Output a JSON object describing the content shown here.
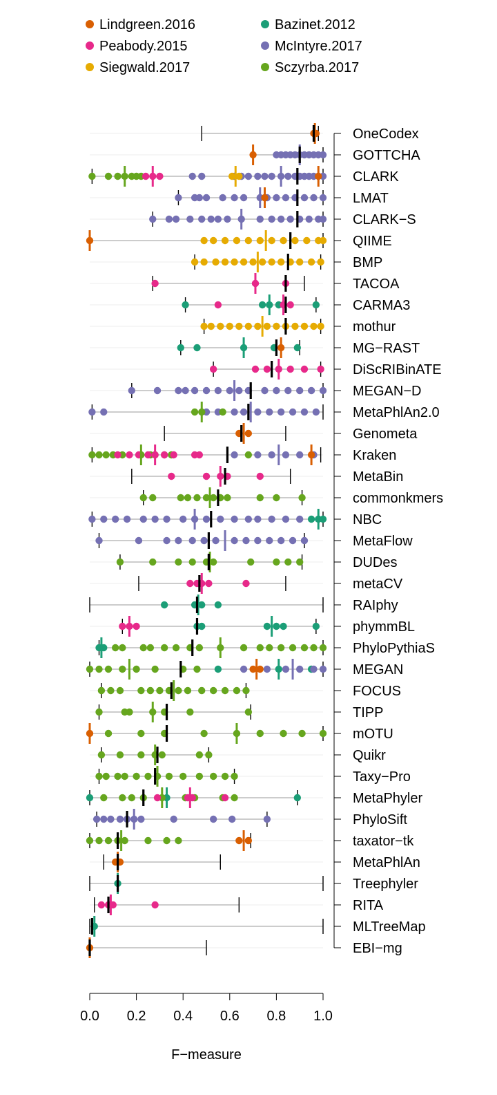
{
  "chart_data": {
    "type": "scatter",
    "xlabel": "F−measure",
    "xlim": [
      0,
      1
    ],
    "xticks": [
      "0.0",
      "0.2",
      "0.4",
      "0.6",
      "0.8",
      "1.0"
    ],
    "grid": true,
    "legend_position": "top",
    "series": [
      {
        "name": "Lindgreen.2016",
        "color": "#D95F02"
      },
      {
        "name": "Bazinet.2012",
        "color": "#1B9E77"
      },
      {
        "name": "Peabody.2015",
        "color": "#E7298A"
      },
      {
        "name": "McIntyre.2017",
        "color": "#7570B3"
      },
      {
        "name": "Siegwald.2017",
        "color": "#E6AB02"
      },
      {
        "name": "Sczyrba.2017",
        "color": "#66A61E"
      }
    ],
    "methods": [
      {
        "name": "OneCodex",
        "median": 0.96,
        "range": [
          0.48,
          0.98
        ],
        "points": {
          "Lindgreen.2016": [
            0.96,
            0.97
          ]
        }
      },
      {
        "name": "GOTTCHA",
        "median": 0.9,
        "range": [
          0.7,
          1.0
        ],
        "points": {
          "Lindgreen.2016": [
            0.7
          ],
          "McIntyre.2017": [
            0.8,
            0.82,
            0.84,
            0.86,
            0.88,
            0.9,
            0.92,
            0.94,
            0.96,
            0.98,
            1.0
          ]
        }
      },
      {
        "name": "CLARK",
        "median": 0.89,
        "range": [
          0.01,
          1.0
        ],
        "points": {
          "Sczyrba.2017": [
            0.01,
            0.08,
            0.12,
            0.15,
            0.18,
            0.2,
            0.22
          ],
          "Peabody.2015": [
            0.24,
            0.27,
            0.3
          ],
          "McIntyre.2017": [
            0.44,
            0.48,
            0.62,
            0.65,
            0.68,
            0.72,
            0.75,
            0.78,
            0.82,
            0.85,
            0.88,
            0.9,
            0.92,
            0.94,
            0.96,
            0.98,
            1.0
          ],
          "Siegwald.2017": [
            0.61,
            0.64
          ],
          "Lindgreen.2016": [
            0.98
          ]
        }
      },
      {
        "name": "LMAT",
        "median": 0.89,
        "range": [
          0.38,
          1.0
        ],
        "points": {
          "McIntyre.2017": [
            0.38,
            0.45,
            0.47,
            0.5,
            0.57,
            0.62,
            0.66,
            0.73,
            0.76,
            0.8,
            0.84,
            0.88,
            0.92,
            0.96,
            1.0
          ],
          "Lindgreen.2016": [
            0.75
          ]
        }
      },
      {
        "name": "CLARK−S",
        "median": 0.89,
        "range": [
          0.27,
          1.0
        ],
        "points": {
          "McIntyre.2017": [
            0.27,
            0.34,
            0.37,
            0.43,
            0.48,
            0.52,
            0.55,
            0.59,
            0.65,
            0.73,
            0.78,
            0.82,
            0.86,
            0.9,
            0.94,
            0.98,
            1.0
          ]
        }
      },
      {
        "name": "QIIME",
        "median": 0.86,
        "range": [
          0.0,
          1.0
        ],
        "points": {
          "Lindgreen.2016": [
            0.0
          ],
          "Siegwald.2017": [
            0.49,
            0.53,
            0.58,
            0.63,
            0.68,
            0.73,
            0.78,
            0.83,
            0.88,
            0.93,
            0.98,
            1.0
          ]
        }
      },
      {
        "name": "BMP",
        "median": 0.85,
        "range": [
          0.45,
          0.99
        ],
        "points": {
          "Siegwald.2017": [
            0.45,
            0.49,
            0.54,
            0.58,
            0.62,
            0.66,
            0.7,
            0.74,
            0.78,
            0.82,
            0.86,
            0.9,
            0.95,
            0.99
          ]
        }
      },
      {
        "name": "TACOA",
        "median": 0.84,
        "range": [
          0.27,
          0.92
        ],
        "points": {
          "Peabody.2015": [
            0.28,
            0.71,
            0.84
          ]
        }
      },
      {
        "name": "CARMA3",
        "median": 0.84,
        "range": [
          0.41,
          0.97
        ],
        "points": {
          "Bazinet.2012": [
            0.41,
            0.74,
            0.77,
            0.81,
            0.97
          ],
          "Peabody.2015": [
            0.55,
            0.83,
            0.86
          ]
        }
      },
      {
        "name": "mothur",
        "median": 0.84,
        "range": [
          0.49,
          0.99
        ],
        "points": {
          "Siegwald.2017": [
            0.49,
            0.52,
            0.56,
            0.6,
            0.64,
            0.68,
            0.72,
            0.76,
            0.8,
            0.84,
            0.88,
            0.92,
            0.96,
            0.99
          ]
        }
      },
      {
        "name": "MG−RAST",
        "median": 0.8,
        "range": [
          0.39,
          0.9
        ],
        "points": {
          "Bazinet.2012": [
            0.39,
            0.46,
            0.66,
            0.79,
            0.89
          ],
          "Lindgreen.2016": [
            0.82
          ]
        }
      },
      {
        "name": "DiScRIBinATE",
        "median": 0.78,
        "range": [
          0.53,
          0.99
        ],
        "points": {
          "Peabody.2015": [
            0.53,
            0.71,
            0.76,
            0.81,
            0.86,
            0.92,
            0.99
          ]
        }
      },
      {
        "name": "MEGAN−D",
        "median": 0.69,
        "range": [
          0.18,
          1.0
        ],
        "points": {
          "McIntyre.2017": [
            0.18,
            0.29,
            0.38,
            0.41,
            0.45,
            0.5,
            0.55,
            0.6,
            0.64,
            0.68,
            0.75,
            0.8,
            0.85,
            0.9,
            0.95,
            1.0
          ]
        }
      },
      {
        "name": "MetaPhlAn2.0",
        "median": 0.68,
        "range": [
          0.01,
          1.0
        ],
        "points": {
          "McIntyre.2017": [
            0.01,
            0.06,
            0.5,
            0.55,
            0.62,
            0.66,
            0.72,
            0.77,
            0.82,
            0.87,
            0.92,
            0.97
          ],
          "Sczyrba.2017": [
            0.45,
            0.48,
            0.57
          ]
        }
      },
      {
        "name": "Genometa",
        "median": 0.65,
        "range": [
          0.32,
          0.84
        ],
        "points": {
          "Lindgreen.2016": [
            0.64,
            0.68
          ]
        }
      },
      {
        "name": "Kraken",
        "median": 0.59,
        "range": [
          0.01,
          0.99
        ],
        "points": {
          "Sczyrba.2017": [
            0.01,
            0.04,
            0.07,
            0.1,
            0.14,
            0.22,
            0.26,
            0.28,
            0.32,
            0.35,
            0.68
          ],
          "Peabody.2015": [
            0.12,
            0.17,
            0.21,
            0.25,
            0.28,
            0.32,
            0.36,
            0.45,
            0.47
          ],
          "McIntyre.2017": [
            0.62,
            0.72,
            0.78,
            0.84,
            0.9,
            0.96
          ],
          "Lindgreen.2016": [
            0.95
          ]
        }
      },
      {
        "name": "MetaBin",
        "median": 0.58,
        "range": [
          0.18,
          0.86
        ],
        "points": {
          "Peabody.2015": [
            0.35,
            0.5,
            0.56,
            0.59,
            0.73
          ]
        }
      },
      {
        "name": "commonkmers",
        "median": 0.55,
        "range": [
          0.23,
          0.91
        ],
        "points": {
          "Sczyrba.2017": [
            0.23,
            0.27,
            0.39,
            0.42,
            0.46,
            0.5,
            0.53,
            0.56,
            0.59,
            0.73,
            0.8,
            0.91
          ]
        }
      },
      {
        "name": "NBC",
        "median": 0.52,
        "range": [
          0.01,
          1.0
        ],
        "points": {
          "McIntyre.2017": [
            0.01,
            0.06,
            0.11,
            0.16,
            0.23,
            0.28,
            0.33,
            0.4,
            0.45,
            0.5,
            0.56,
            0.62,
            0.68,
            0.72,
            0.78,
            0.84,
            0.9
          ],
          "Bazinet.2012": [
            0.95,
            0.98,
            1.0
          ]
        }
      },
      {
        "name": "MetaFlow",
        "median": 0.51,
        "range": [
          0.04,
          0.92
        ],
        "points": {
          "McIntyre.2017": [
            0.04,
            0.21,
            0.33,
            0.38,
            0.44,
            0.49,
            0.54,
            0.62,
            0.67,
            0.72,
            0.77,
            0.82,
            0.87,
            0.92
          ]
        }
      },
      {
        "name": "DUDes",
        "median": 0.51,
        "range": [
          0.13,
          0.91
        ],
        "points": {
          "Sczyrba.2017": [
            0.13,
            0.27,
            0.38,
            0.44,
            0.5,
            0.53,
            0.69,
            0.8,
            0.85,
            0.9
          ]
        }
      },
      {
        "name": "metaCV",
        "median": 0.47,
        "range": [
          0.21,
          0.84
        ],
        "points": {
          "Peabody.2015": [
            0.43,
            0.46,
            0.48,
            0.51,
            0.67
          ]
        }
      },
      {
        "name": "RAIphy",
        "median": 0.46,
        "range": [
          0.0,
          1.0
        ],
        "points": {
          "Bazinet.2012": [
            0.32,
            0.45,
            0.48,
            0.55
          ]
        }
      },
      {
        "name": "phymmBL",
        "median": 0.46,
        "range": [
          0.14,
          0.97
        ],
        "points": {
          "Peabody.2015": [
            0.14,
            0.17,
            0.2
          ],
          "Bazinet.2012": [
            0.46,
            0.48,
            0.76,
            0.8,
            0.83,
            0.97
          ]
        }
      },
      {
        "name": "PhyloPythiaS",
        "median": 0.44,
        "range": [
          0.04,
          1.0
        ],
        "points": {
          "Bazinet.2012": [
            0.04,
            0.06
          ],
          "Sczyrba.2017": [
            0.11,
            0.14,
            0.23,
            0.26,
            0.32,
            0.37,
            0.43,
            0.47,
            0.56,
            0.66,
            0.73,
            0.77,
            0.82,
            0.87,
            0.92,
            0.96,
            1.0
          ]
        }
      },
      {
        "name": "MEGAN",
        "median": 0.39,
        "range": [
          0.0,
          1.0
        ],
        "points": {
          "Sczyrba.2017": [
            0.0,
            0.04,
            0.08,
            0.14,
            0.2,
            0.28,
            0.4,
            0.46
          ],
          "Bazinet.2012": [
            0.55,
            0.81,
            0.95
          ],
          "Lindgreen.2016": [
            0.7,
            0.73
          ],
          "McIntyre.2017": [
            0.66,
            0.76,
            0.84,
            0.9,
            0.96,
            1.0
          ]
        }
      },
      {
        "name": "FOCUS",
        "median": 0.35,
        "range": [
          0.05,
          0.67
        ],
        "points": {
          "Sczyrba.2017": [
            0.05,
            0.09,
            0.13,
            0.22,
            0.26,
            0.3,
            0.34,
            0.38,
            0.42,
            0.48,
            0.53,
            0.58,
            0.63,
            0.67
          ]
        }
      },
      {
        "name": "TIPP",
        "median": 0.33,
        "range": [
          0.04,
          0.69
        ],
        "points": {
          "Sczyrba.2017": [
            0.04,
            0.15,
            0.17,
            0.27,
            0.32,
            0.43,
            0.68
          ]
        }
      },
      {
        "name": "mOTU",
        "median": 0.33,
        "range": [
          0.0,
          1.0
        ],
        "points": {
          "Lindgreen.2016": [
            0.0
          ],
          "Sczyrba.2017": [
            0.08,
            0.22,
            0.32,
            0.49,
            0.63,
            0.73,
            0.83,
            0.91,
            1.0
          ]
        }
      },
      {
        "name": "Quikr",
        "median": 0.29,
        "range": [
          0.05,
          0.51
        ],
        "points": {
          "Sczyrba.2017": [
            0.05,
            0.13,
            0.22,
            0.28,
            0.31,
            0.47,
            0.51
          ]
        }
      },
      {
        "name": "Taxy−Pro",
        "median": 0.28,
        "range": [
          0.04,
          0.62
        ],
        "points": {
          "Sczyrba.2017": [
            0.04,
            0.07,
            0.12,
            0.15,
            0.2,
            0.25,
            0.29,
            0.34,
            0.4,
            0.47,
            0.53,
            0.58,
            0.62
          ]
        }
      },
      {
        "name": "MetaPhyler",
        "median": 0.23,
        "range": [
          0.0,
          0.89
        ],
        "points": {
          "Bazinet.2012": [
            0.0,
            0.33,
            0.89
          ],
          "Sczyrba.2017": [
            0.06,
            0.14,
            0.18,
            0.23,
            0.31,
            0.41,
            0.45,
            0.57,
            0.62
          ],
          "Peabody.2015": [
            0.29,
            0.42,
            0.44,
            0.58
          ]
        }
      },
      {
        "name": "PhyloSift",
        "median": 0.16,
        "range": [
          0.03,
          0.76
        ],
        "points": {
          "McIntyre.2017": [
            0.03,
            0.06,
            0.09,
            0.13,
            0.16,
            0.19,
            0.22,
            0.36,
            0.53,
            0.61,
            0.76
          ]
        }
      },
      {
        "name": "taxator−tk",
        "median": 0.12,
        "range": [
          0.0,
          0.69
        ],
        "points": {
          "Sczyrba.2017": [
            0.0,
            0.04,
            0.08,
            0.12,
            0.15,
            0.25,
            0.33,
            0.38
          ],
          "Lindgreen.2016": [
            0.64,
            0.68
          ]
        }
      },
      {
        "name": "MetaPhlAn",
        "median": 0.12,
        "range": [
          0.06,
          0.56
        ],
        "points": {
          "Lindgreen.2016": [
            0.11,
            0.13
          ]
        }
      },
      {
        "name": "Treephyler",
        "median": 0.12,
        "range": [
          0.0,
          1.0
        ],
        "points": {
          "Bazinet.2012": [
            0.12
          ]
        }
      },
      {
        "name": "RITA",
        "median": 0.08,
        "range": [
          0.02,
          0.64
        ],
        "points": {
          "Peabody.2015": [
            0.05,
            0.08,
            0.1,
            0.28
          ]
        }
      },
      {
        "name": "MLTreeMap",
        "median": 0.01,
        "range": [
          0.0,
          1.0
        ],
        "points": {
          "Bazinet.2012": [
            0.02
          ]
        }
      },
      {
        "name": "EBI−mg",
        "median": 0.0,
        "range": [
          0.0,
          0.5
        ],
        "points": {
          "Lindgreen.2016": [
            0.0
          ]
        }
      }
    ]
  }
}
